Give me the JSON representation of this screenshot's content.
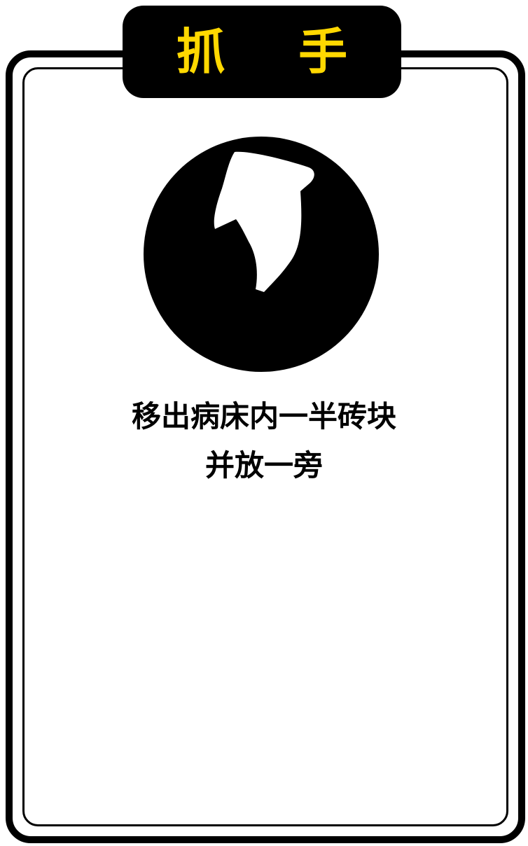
{
  "card": {
    "title": "抓 手",
    "icon": "hand-gripper-icon",
    "caption_lines": [
      "移出病床内一半砖块",
      "并放一旁"
    ]
  },
  "colors": {
    "title_text": "#ffd800",
    "frame": "#000000",
    "background": "#ffffff"
  }
}
